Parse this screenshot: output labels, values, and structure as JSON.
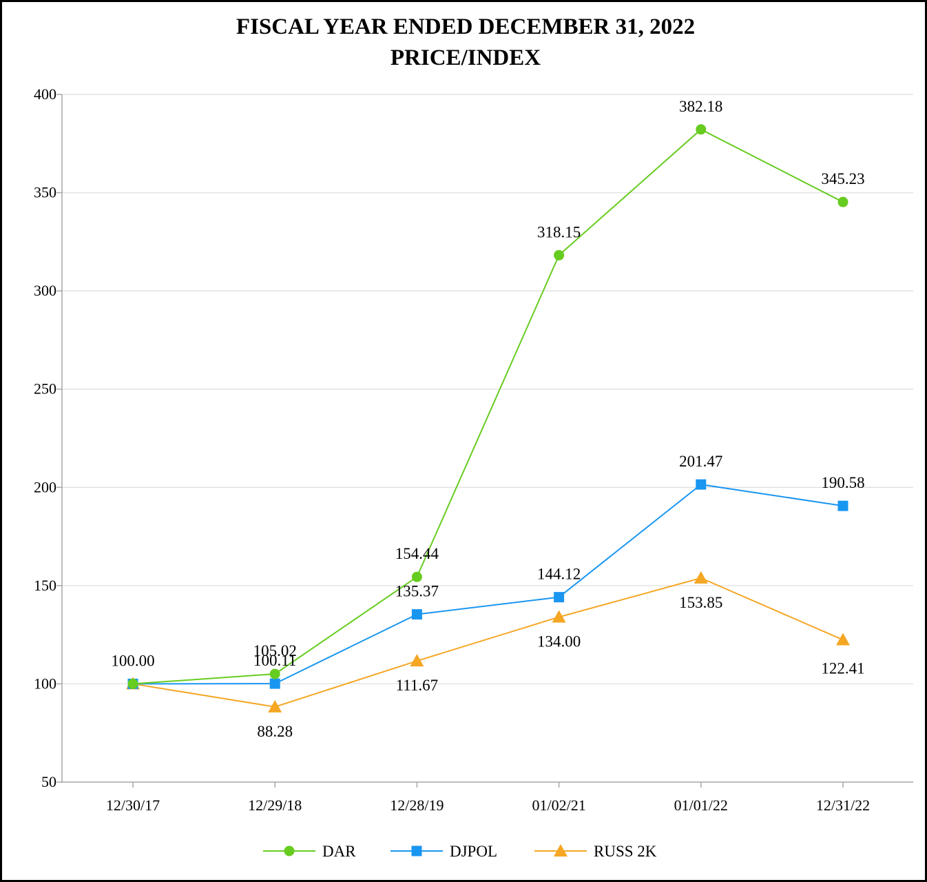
{
  "chart_data": {
    "type": "line",
    "title": [
      "FISCAL YEAR ENDED DECEMBER 31, 2022",
      "PRICE/INDEX"
    ],
    "categories": [
      "12/30/17",
      "12/29/18",
      "12/28/19",
      "01/02/21",
      "01/01/22",
      "12/31/22"
    ],
    "ylim": [
      50,
      400
    ],
    "yticks": [
      50,
      100,
      150,
      200,
      250,
      300,
      350,
      400
    ],
    "grid": true,
    "legend_position": "bottom",
    "series": [
      {
        "name": "DAR",
        "color": "#66cc1f",
        "marker": "circle",
        "values": [
          100.0,
          105.02,
          154.44,
          318.15,
          382.18,
          345.23
        ],
        "labels": [
          "100.00",
          "105.02",
          "154.44",
          "318.15",
          "382.18",
          "345.23"
        ]
      },
      {
        "name": "DJPOL",
        "color": "#1996f0",
        "marker": "square",
        "values": [
          100.0,
          100.11,
          135.37,
          144.12,
          201.47,
          190.58
        ],
        "labels": [
          "",
          "100.11",
          "135.37",
          "144.12",
          "201.47",
          "190.58"
        ]
      },
      {
        "name": "RUSS 2K",
        "color": "#f5a623",
        "marker": "triangle",
        "values": [
          100.0,
          88.28,
          111.67,
          134.0,
          153.85,
          122.41
        ],
        "labels": [
          "",
          "88.28",
          "111.67",
          "134.00",
          "153.85",
          "122.41"
        ]
      }
    ]
  }
}
